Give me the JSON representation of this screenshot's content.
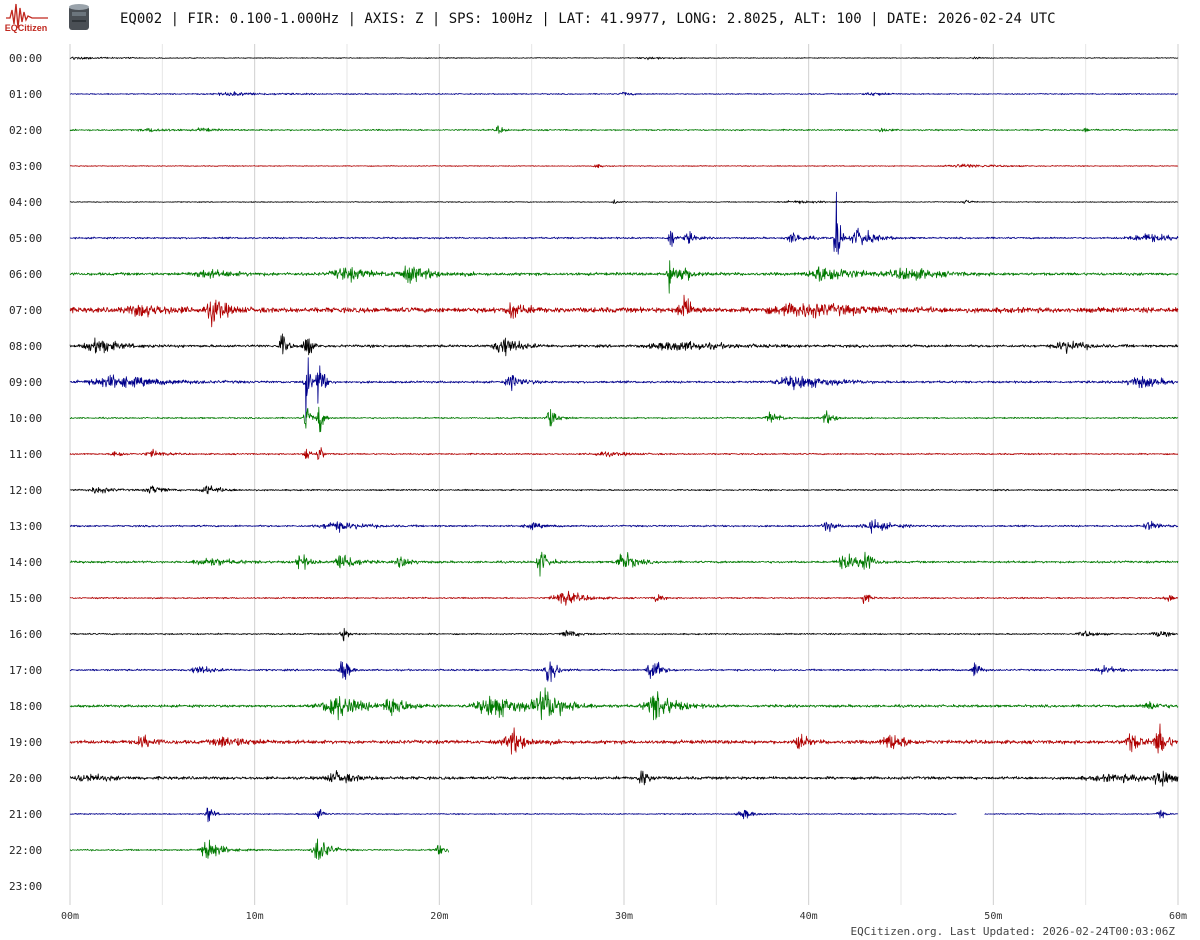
{
  "header": {
    "brand_name": "EQCitizen",
    "logo_icon": "seismograph-logo-icon",
    "sensor_icon": "sensor-canister-icon",
    "station_line": "EQ002 | FIR: 0.100-1.000Hz | AXIS: Z | SPS: 100Hz | LAT: 41.9977, LONG: 2.8025, ALT: 100 | DATE: 2026-02-24 UTC"
  },
  "footer": {
    "updated": "EQCitizen.org. Last Updated: 2026-02-24T00:03:06Z"
  },
  "chart_data": {
    "type": "helicorder",
    "x_ticks": [
      "00m",
      "10m",
      "20m",
      "30m",
      "40m",
      "50m",
      "60m"
    ],
    "xlim": [
      0,
      60
    ],
    "grid_minutes_step": 5,
    "grid": true,
    "trace_colors": [
      "#000000",
      "#00008b",
      "#007a00",
      "#b00000"
    ],
    "rows": [
      {
        "label": "00:00",
        "start": 0,
        "end": 60,
        "base": 0.6,
        "bursts": [
          {
            "t": 0.5,
            "w": 1.5,
            "a": 1.5
          },
          {
            "t": 31.5,
            "w": 0.8,
            "a": 1.8
          },
          {
            "t": 49,
            "w": 0.3,
            "a": 1.5
          }
        ]
      },
      {
        "label": "01:00",
        "start": 0,
        "end": 60,
        "base": 0.8,
        "bursts": [
          {
            "t": 9,
            "w": 1.5,
            "a": 2.2
          },
          {
            "t": 30,
            "w": 0.3,
            "a": 3
          },
          {
            "t": 43.5,
            "w": 0.6,
            "a": 2.5
          }
        ]
      },
      {
        "label": "02:00",
        "start": 0,
        "end": 60,
        "base": 1.0,
        "bursts": [
          {
            "t": 4.5,
            "w": 0.8,
            "a": 2.5
          },
          {
            "t": 7.2,
            "w": 0.4,
            "a": 3
          },
          {
            "t": 23.2,
            "w": 0.2,
            "a": 6
          },
          {
            "t": 44,
            "w": 0.3,
            "a": 3
          },
          {
            "t": 55,
            "w": 0.2,
            "a": 3
          }
        ]
      },
      {
        "label": "03:00",
        "start": 0,
        "end": 60,
        "base": 0.6,
        "bursts": [
          {
            "t": 28.5,
            "w": 0.2,
            "a": 3.5
          },
          {
            "t": 48.5,
            "w": 1.5,
            "a": 2.5
          }
        ]
      },
      {
        "label": "04:00",
        "start": 0,
        "end": 60,
        "base": 0.6,
        "bursts": [
          {
            "t": 29.5,
            "w": 0.2,
            "a": 3
          },
          {
            "t": 39.5,
            "w": 1.2,
            "a": 2
          },
          {
            "t": 48.5,
            "w": 0.3,
            "a": 3
          }
        ]
      },
      {
        "label": "05:00",
        "start": 0,
        "end": 60,
        "base": 1.2,
        "bursts": [
          {
            "t": 32.5,
            "w": 0.15,
            "a": 22
          },
          {
            "t": 33.5,
            "w": 0.3,
            "a": 8
          },
          {
            "t": 39.2,
            "w": 0.5,
            "a": 7
          },
          {
            "t": 41.5,
            "w": 0.15,
            "a": 60
          },
          {
            "t": 42.8,
            "w": 0.6,
            "a": 14
          },
          {
            "t": 58.5,
            "w": 1.5,
            "a": 5
          }
        ]
      },
      {
        "label": "06:00",
        "start": 0,
        "end": 60,
        "base": 2.0,
        "bursts": [
          {
            "t": 7.5,
            "w": 1.2,
            "a": 5
          },
          {
            "t": 15,
            "w": 1.0,
            "a": 9
          },
          {
            "t": 18.5,
            "w": 1.0,
            "a": 10
          },
          {
            "t": 32.5,
            "w": 0.2,
            "a": 22
          },
          {
            "t": 33.2,
            "w": 0.5,
            "a": 10
          },
          {
            "t": 41,
            "w": 1.2,
            "a": 12
          },
          {
            "t": 45.5,
            "w": 1.2,
            "a": 8
          }
        ]
      },
      {
        "label": "07:00",
        "start": 0,
        "end": 60,
        "base": 3.5,
        "bursts": [
          {
            "t": 4,
            "w": 1.2,
            "a": 7
          },
          {
            "t": 7.8,
            "w": 0.5,
            "a": 18
          },
          {
            "t": 24,
            "w": 0.5,
            "a": 10
          },
          {
            "t": 33.2,
            "w": 0.3,
            "a": 25
          },
          {
            "t": 40,
            "w": 2.5,
            "a": 8
          }
        ]
      },
      {
        "label": "08:00",
        "start": 0,
        "end": 60,
        "base": 1.8,
        "bursts": [
          {
            "t": 1.5,
            "w": 0.8,
            "a": 12
          },
          {
            "t": 11.5,
            "w": 0.2,
            "a": 18
          },
          {
            "t": 12.8,
            "w": 0.2,
            "a": 22
          },
          {
            "t": 23.5,
            "w": 0.6,
            "a": 16
          },
          {
            "t": 33,
            "w": 2.0,
            "a": 6
          },
          {
            "t": 54,
            "w": 0.8,
            "a": 8
          }
        ]
      },
      {
        "label": "09:00",
        "start": 0,
        "end": 60,
        "base": 1.5,
        "bursts": [
          {
            "t": 2.5,
            "w": 2.0,
            "a": 8
          },
          {
            "t": 12.8,
            "w": 0.15,
            "a": 55
          },
          {
            "t": 13.5,
            "w": 0.15,
            "a": 55
          },
          {
            "t": 24,
            "w": 0.5,
            "a": 10
          },
          {
            "t": 39.5,
            "w": 1.5,
            "a": 9
          },
          {
            "t": 58,
            "w": 1.0,
            "a": 8
          }
        ]
      },
      {
        "label": "10:00",
        "start": 0,
        "end": 60,
        "base": 1.0,
        "bursts": [
          {
            "t": 12.8,
            "w": 0.15,
            "a": 28
          },
          {
            "t": 13.5,
            "w": 0.15,
            "a": 28
          },
          {
            "t": 26,
            "w": 0.3,
            "a": 16
          },
          {
            "t": 38,
            "w": 0.4,
            "a": 8
          },
          {
            "t": 41,
            "w": 0.4,
            "a": 8
          }
        ]
      },
      {
        "label": "11:00",
        "start": 0,
        "end": 60,
        "base": 1.0,
        "bursts": [
          {
            "t": 2.5,
            "w": 0.3,
            "a": 6
          },
          {
            "t": 4.5,
            "w": 0.5,
            "a": 5
          },
          {
            "t": 12.8,
            "w": 0.15,
            "a": 15
          },
          {
            "t": 13.5,
            "w": 0.15,
            "a": 15
          },
          {
            "t": 29,
            "w": 1.0,
            "a": 3
          }
        ]
      },
      {
        "label": "12:00",
        "start": 0,
        "end": 60,
        "base": 1.0,
        "bursts": [
          {
            "t": 1.5,
            "w": 0.6,
            "a": 5
          },
          {
            "t": 4.5,
            "w": 0.5,
            "a": 6
          },
          {
            "t": 7.5,
            "w": 0.6,
            "a": 6
          }
        ]
      },
      {
        "label": "13:00",
        "start": 0,
        "end": 60,
        "base": 1.2,
        "bursts": [
          {
            "t": 14.5,
            "w": 1.2,
            "a": 6
          },
          {
            "t": 25,
            "w": 0.5,
            "a": 4
          },
          {
            "t": 41,
            "w": 0.3,
            "a": 9
          },
          {
            "t": 43.5,
            "w": 0.8,
            "a": 8
          },
          {
            "t": 58.5,
            "w": 0.5,
            "a": 6
          }
        ]
      },
      {
        "label": "14:00",
        "start": 0,
        "end": 60,
        "base": 1.5,
        "bursts": [
          {
            "t": 7.5,
            "w": 1.0,
            "a": 6
          },
          {
            "t": 12.5,
            "w": 0.3,
            "a": 14
          },
          {
            "t": 14.8,
            "w": 0.5,
            "a": 15
          },
          {
            "t": 18,
            "w": 0.4,
            "a": 8
          },
          {
            "t": 25.5,
            "w": 0.3,
            "a": 18
          },
          {
            "t": 30,
            "w": 0.5,
            "a": 14
          },
          {
            "t": 42,
            "w": 0.5,
            "a": 12
          },
          {
            "t": 43,
            "w": 0.3,
            "a": 20
          }
        ]
      },
      {
        "label": "15:00",
        "start": 0,
        "end": 60,
        "base": 1.0,
        "bursts": [
          {
            "t": 26.8,
            "w": 0.8,
            "a": 10
          },
          {
            "t": 31.8,
            "w": 0.2,
            "a": 8
          },
          {
            "t": 43,
            "w": 0.2,
            "a": 10
          },
          {
            "t": 59.5,
            "w": 0.3,
            "a": 5
          }
        ]
      },
      {
        "label": "16:00",
        "start": 0,
        "end": 60,
        "base": 1.0,
        "bursts": [
          {
            "t": 14.8,
            "w": 0.2,
            "a": 10
          },
          {
            "t": 27,
            "w": 0.5,
            "a": 5
          },
          {
            "t": 55,
            "w": 0.5,
            "a": 4
          },
          {
            "t": 59,
            "w": 0.5,
            "a": 4
          }
        ]
      },
      {
        "label": "17:00",
        "start": 0,
        "end": 60,
        "base": 1.2,
        "bursts": [
          {
            "t": 7,
            "w": 0.6,
            "a": 6
          },
          {
            "t": 14.8,
            "w": 0.2,
            "a": 25
          },
          {
            "t": 26,
            "w": 0.3,
            "a": 20
          },
          {
            "t": 31.5,
            "w": 0.3,
            "a": 25
          },
          {
            "t": 49,
            "w": 0.2,
            "a": 14
          },
          {
            "t": 56,
            "w": 0.6,
            "a": 5
          }
        ]
      },
      {
        "label": "18:00",
        "start": 0,
        "end": 60,
        "base": 1.8,
        "bursts": [
          {
            "t": 14.5,
            "w": 1.0,
            "a": 18
          },
          {
            "t": 17.5,
            "w": 0.6,
            "a": 14
          },
          {
            "t": 23,
            "w": 1.2,
            "a": 16
          },
          {
            "t": 25.8,
            "w": 0.8,
            "a": 22
          },
          {
            "t": 31.8,
            "w": 0.8,
            "a": 20
          },
          {
            "t": 58.5,
            "w": 0.5,
            "a": 6
          }
        ]
      },
      {
        "label": "19:00",
        "start": 0,
        "end": 60,
        "base": 2.5,
        "bursts": [
          {
            "t": 4,
            "w": 0.5,
            "a": 8
          },
          {
            "t": 8.5,
            "w": 1.0,
            "a": 7
          },
          {
            "t": 24,
            "w": 0.6,
            "a": 16
          },
          {
            "t": 39.5,
            "w": 0.3,
            "a": 14
          },
          {
            "t": 44.5,
            "w": 0.6,
            "a": 12
          },
          {
            "t": 57.5,
            "w": 0.5,
            "a": 12
          },
          {
            "t": 59,
            "w": 0.3,
            "a": 25
          }
        ]
      },
      {
        "label": "20:00",
        "start": 0,
        "end": 60,
        "base": 2.0,
        "bursts": [
          {
            "t": 1,
            "w": 1.0,
            "a": 5
          },
          {
            "t": 14.5,
            "w": 0.8,
            "a": 8
          },
          {
            "t": 31,
            "w": 0.3,
            "a": 12
          },
          {
            "t": 57,
            "w": 2.5,
            "a": 4
          },
          {
            "t": 59,
            "w": 0.3,
            "a": 18
          }
        ]
      },
      {
        "label": "21:00",
        "start": 0,
        "end": 60,
        "base": 0.8,
        "bursts": [
          {
            "t": 7.5,
            "w": 0.2,
            "a": 14
          },
          {
            "t": 13.5,
            "w": 0.2,
            "a": 10
          },
          {
            "t": 36.5,
            "w": 0.4,
            "a": 7
          },
          {
            "t": 59,
            "w": 0.2,
            "a": 8
          }
        ],
        "gap": [
          48,
          49.5
        ]
      },
      {
        "label": "22:00",
        "start": 0,
        "end": 20.5,
        "base": 1.0,
        "bursts": [
          {
            "t": 7.5,
            "w": 0.5,
            "a": 18
          },
          {
            "t": 13.5,
            "w": 0.4,
            "a": 22
          },
          {
            "t": 20,
            "w": 0.4,
            "a": 6
          }
        ]
      },
      {
        "label": "23:00",
        "start": 0,
        "end": 0,
        "base": 0,
        "bursts": []
      }
    ]
  }
}
